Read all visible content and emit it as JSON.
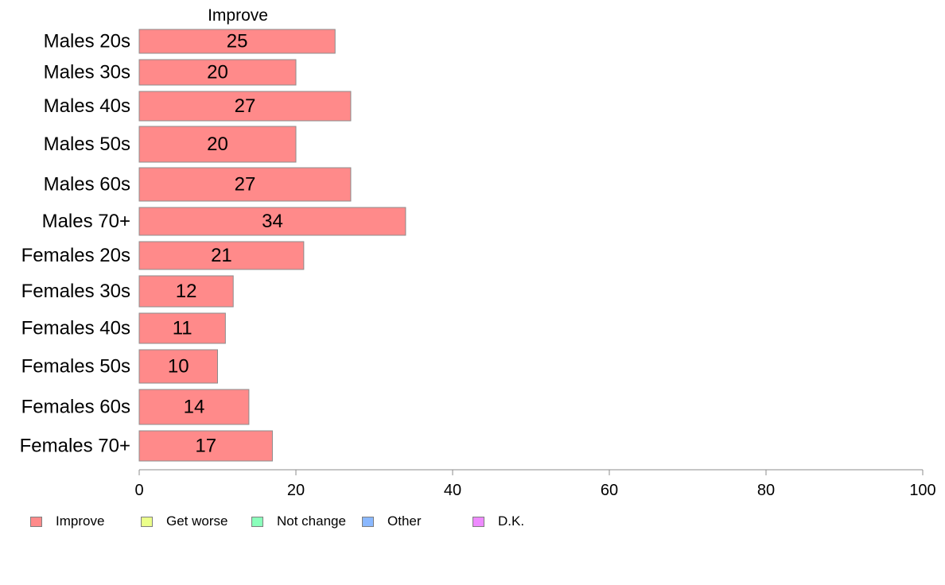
{
  "chart_data": {
    "type": "bar",
    "orientation": "horizontal",
    "series_title": "Improve",
    "categories": [
      "Males 20s",
      "Males 30s",
      "Males 40s",
      "Males 50s",
      "Males 60s",
      "Males 70+",
      "Females 20s",
      "Females 30s",
      "Females 40s",
      "Females 50s",
      "Females 60s",
      "Females 70+"
    ],
    "series": [
      {
        "name": "Improve",
        "color": "#ff8a8a",
        "values": [
          25,
          20,
          27,
          20,
          27,
          34,
          21,
          12,
          11,
          10,
          14,
          17
        ]
      }
    ],
    "xlim": [
      0,
      100
    ],
    "xticks": [
      0,
      20,
      40,
      60,
      80,
      100
    ],
    "legend": [
      {
        "label": "Improve",
        "color": "#ff8a8a"
      },
      {
        "label": "Get worse",
        "color": "#ebff8a"
      },
      {
        "label": "Not change",
        "color": "#8affbb"
      },
      {
        "label": "Other",
        "color": "#8ab8ff"
      },
      {
        "label": "D.K.",
        "color": "#ee8aff"
      }
    ],
    "legend_position": "bottom",
    "grid": false
  }
}
